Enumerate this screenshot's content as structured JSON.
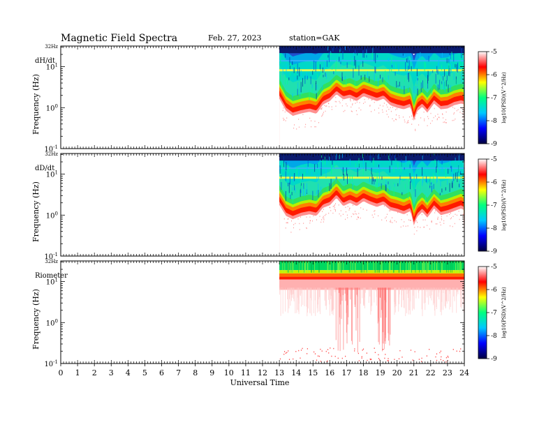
{
  "header": {
    "title": "Magnetic  Field  Spectra",
    "date": "Feb. 27, 2023",
    "station": "station=GAK"
  },
  "chart_data": [
    {
      "type": "heatmap",
      "panel_label": "dH/dt",
      "top_label": "32Hz",
      "ylabel": "Frequency  (Hz)",
      "y_scale": "log",
      "ylim": [
        0.1,
        32
      ],
      "y_ticks": [
        {
          "value": 10,
          "label": "10^1"
        },
        {
          "value": 1,
          "label": "10^0"
        },
        {
          "value": 0.1,
          "label": "10^-1"
        }
      ],
      "xlim": [
        0,
        24
      ],
      "data_start_hour": 13,
      "data_end_hour": 24,
      "noise_floor_log10_hz": [
        [
          13.0,
          0.42
        ],
        [
          13.4,
          0.12
        ],
        [
          13.8,
          0.0
        ],
        [
          14.3,
          0.06
        ],
        [
          14.8,
          0.1
        ],
        [
          15.2,
          0.05
        ],
        [
          15.6,
          0.28
        ],
        [
          16.0,
          0.36
        ],
        [
          16.4,
          0.53
        ],
        [
          16.8,
          0.4
        ],
        [
          17.2,
          0.44
        ],
        [
          17.6,
          0.36
        ],
        [
          18.0,
          0.48
        ],
        [
          18.4,
          0.42
        ],
        [
          18.8,
          0.36
        ],
        [
          19.2,
          0.42
        ],
        [
          19.6,
          0.26
        ],
        [
          20.0,
          0.2
        ],
        [
          20.4,
          0.16
        ],
        [
          20.8,
          0.22
        ],
        [
          21.0,
          -0.12
        ],
        [
          21.2,
          0.12
        ],
        [
          21.5,
          0.22
        ],
        [
          21.8,
          0.08
        ],
        [
          22.2,
          0.3
        ],
        [
          22.6,
          0.16
        ],
        [
          23.0,
          0.18
        ],
        [
          23.4,
          0.26
        ],
        [
          23.8,
          0.3
        ],
        [
          24.0,
          0.28
        ]
      ]
    },
    {
      "type": "heatmap",
      "panel_label": "dD/dt",
      "top_label": "32Hz",
      "ylabel": "Frequency  (Hz)",
      "y_scale": "log",
      "ylim": [
        0.1,
        32
      ],
      "y_ticks": [
        {
          "value": 10,
          "label": "10^1"
        },
        {
          "value": 1,
          "label": "10^0"
        },
        {
          "value": 0.1,
          "label": "10^-1"
        }
      ],
      "xlim": [
        0,
        24
      ],
      "data_start_hour": 13,
      "data_end_hour": 24,
      "noise_floor_log10_hz": [
        [
          13.0,
          0.45
        ],
        [
          13.4,
          0.18
        ],
        [
          13.8,
          0.1
        ],
        [
          14.3,
          0.18
        ],
        [
          14.8,
          0.22
        ],
        [
          15.2,
          0.18
        ],
        [
          15.6,
          0.38
        ],
        [
          16.0,
          0.44
        ],
        [
          16.4,
          0.62
        ],
        [
          16.8,
          0.42
        ],
        [
          17.2,
          0.5
        ],
        [
          17.6,
          0.42
        ],
        [
          18.0,
          0.54
        ],
        [
          18.4,
          0.46
        ],
        [
          18.8,
          0.4
        ],
        [
          19.2,
          0.46
        ],
        [
          19.6,
          0.32
        ],
        [
          20.0,
          0.28
        ],
        [
          20.4,
          0.22
        ],
        [
          20.8,
          0.3
        ],
        [
          21.0,
          -0.05
        ],
        [
          21.2,
          0.16
        ],
        [
          21.5,
          0.28
        ],
        [
          21.8,
          0.14
        ],
        [
          22.2,
          0.36
        ],
        [
          22.6,
          0.2
        ],
        [
          23.0,
          0.24
        ],
        [
          23.4,
          0.3
        ],
        [
          23.8,
          0.36
        ],
        [
          24.0,
          0.32
        ]
      ]
    },
    {
      "type": "heatmap",
      "panel_label": "Riometer",
      "top_label": "32Hz",
      "ylabel": "Frequency  (Hz)",
      "y_scale": "log",
      "ylim": [
        0.1,
        32
      ],
      "y_ticks": [
        {
          "value": 10,
          "label": "10^1"
        },
        {
          "value": 1,
          "label": "10^0"
        },
        {
          "value": 0.1,
          "label": "10^-1"
        }
      ],
      "xlim": [
        0,
        24
      ],
      "data_start_hour": 13,
      "data_end_hour": 24,
      "dense_floor_log10_hz": 1.05
    }
  ],
  "x_axis": {
    "label": "Universal  Time",
    "tick_labels": [
      "0",
      "1",
      "2",
      "3",
      "4",
      "5",
      "6",
      "7",
      "8",
      "9",
      "10",
      "11",
      "12",
      "13",
      "14",
      "15",
      "16",
      "17",
      "18",
      "19",
      "20",
      "21",
      "22",
      "23",
      "24"
    ]
  },
  "colorbar": {
    "label": "log10(PSD)(V^2/Hz)",
    "ticks": [
      "-5",
      "-6",
      "-7",
      "-8",
      "-9"
    ],
    "range": [
      -9,
      -5
    ],
    "colors": [
      "#000040",
      "#0000ff",
      "#00c8ff",
      "#00ff80",
      "#ffff00",
      "#ff0000",
      "#ffffff"
    ]
  }
}
